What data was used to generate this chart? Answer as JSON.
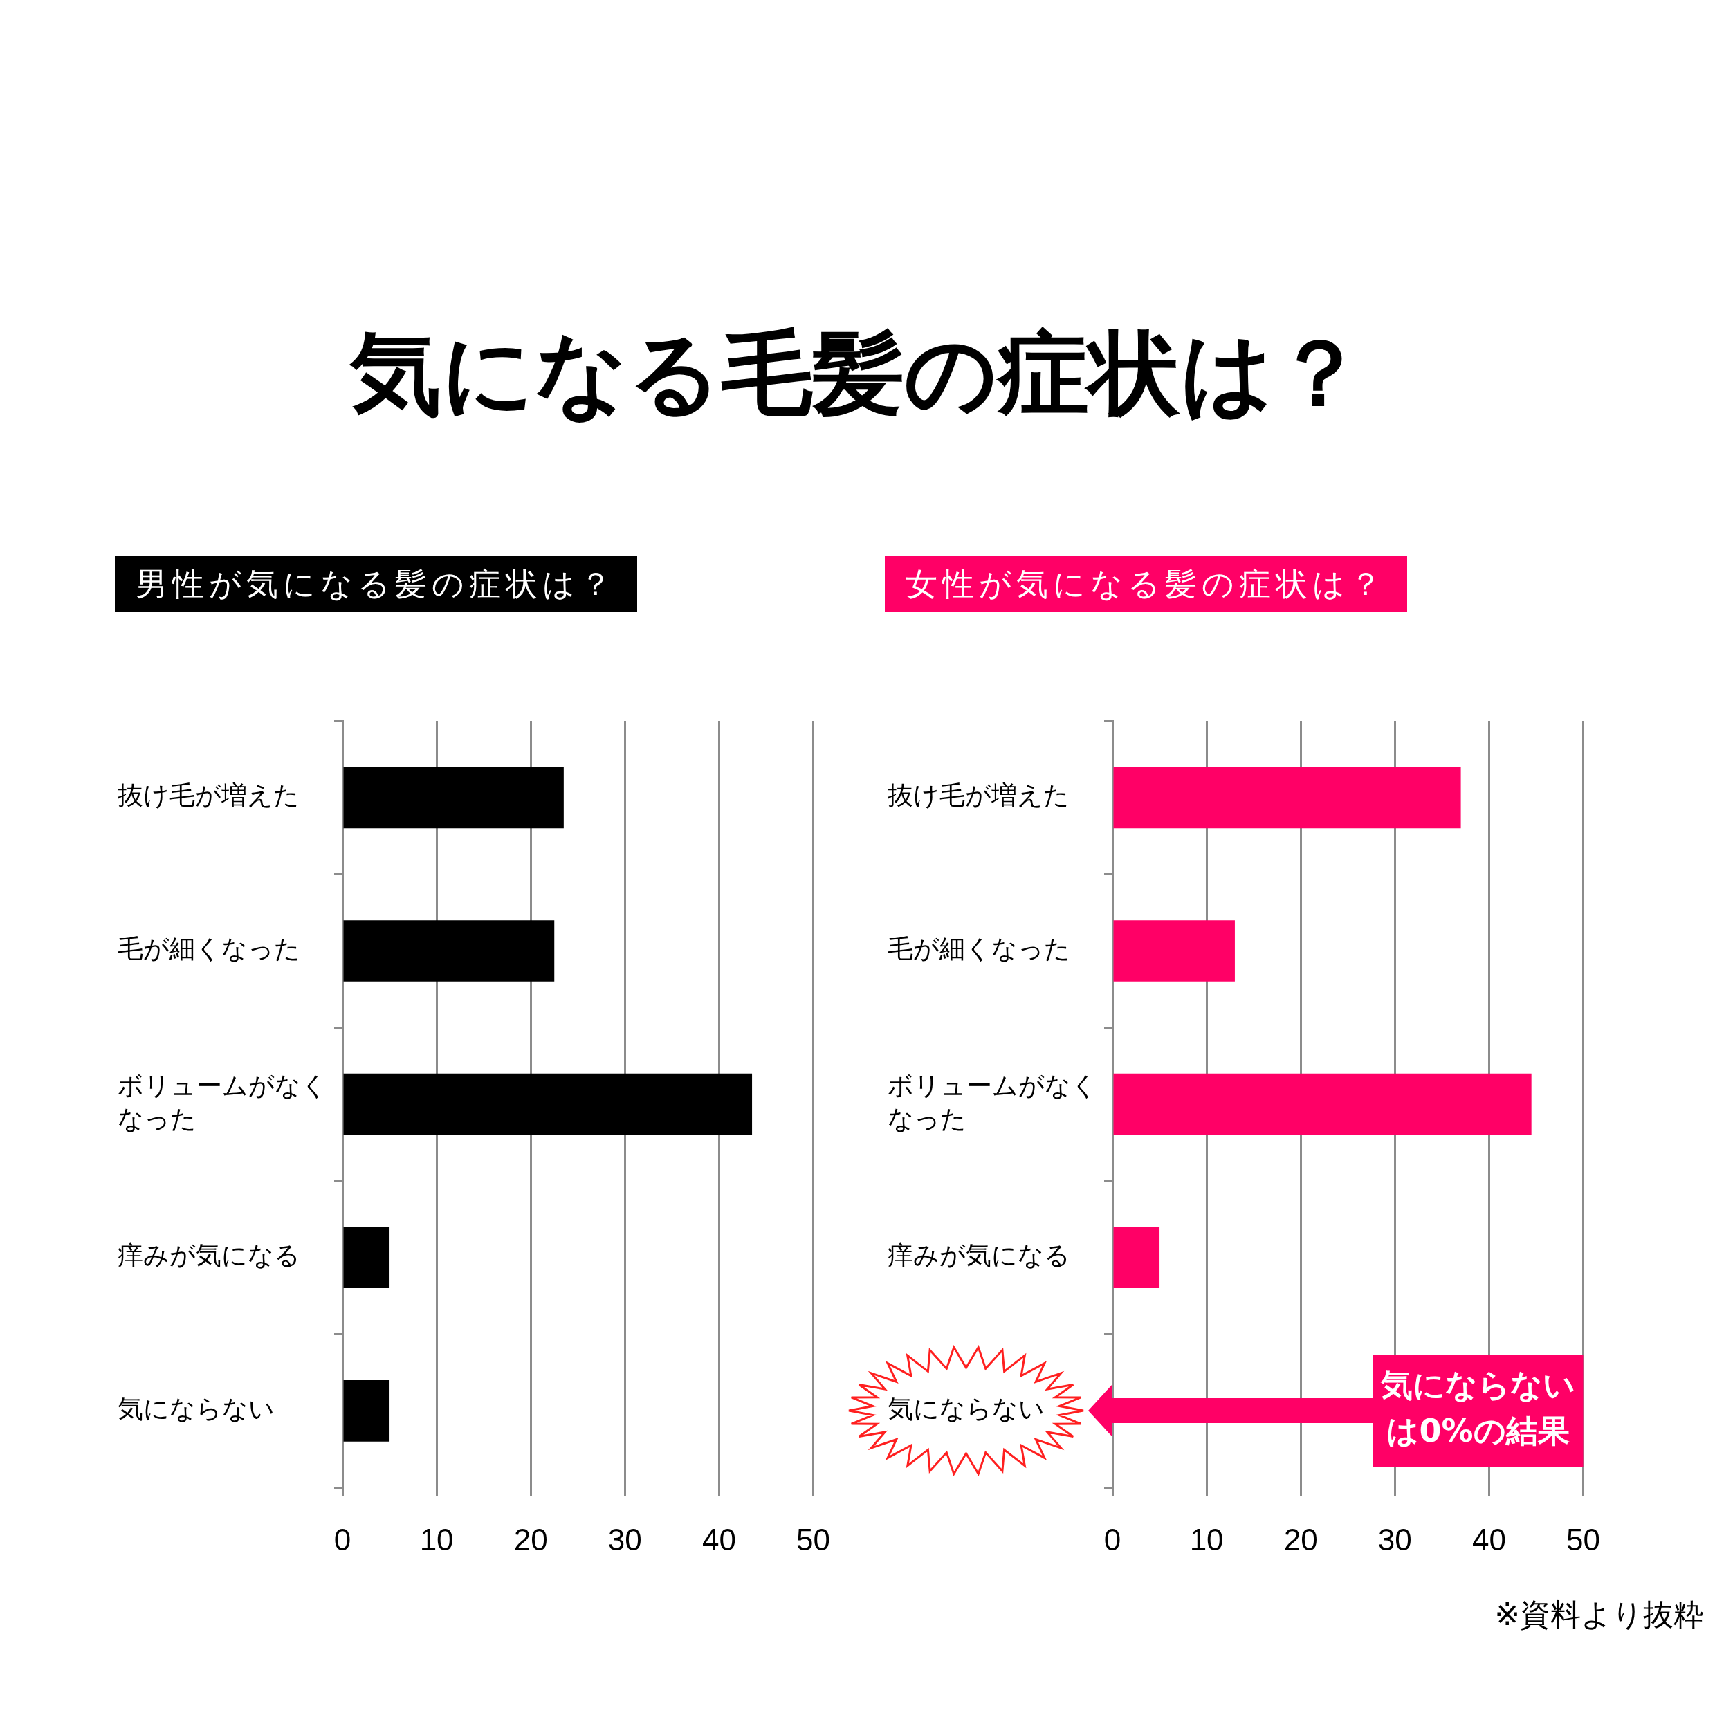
{
  "chart_data": [
    {
      "type": "bar",
      "orientation": "horizontal",
      "title": "気になる毛髪の症状は？",
      "subtitle": "男性が気になる髪の症状は？",
      "categories": [
        "抜け毛が増えた",
        "毛が細くなった",
        "ボリュームがなくなった",
        "痒みが気になる",
        "気にならない"
      ],
      "values": [
        23.5,
        22.5,
        43.5,
        5,
        5
      ],
      "color": "#000000",
      "xlim": [
        0,
        50
      ],
      "xticks": [
        0,
        10,
        20,
        30,
        40,
        50
      ],
      "grid": "x"
    },
    {
      "type": "bar",
      "orientation": "horizontal",
      "subtitle": "女性が気になる髪の症状は？",
      "categories": [
        "抜け毛が増えた",
        "毛が細くなった",
        "ボリュームがなくなった",
        "痒みが気になる",
        "気にならない"
      ],
      "values": [
        37,
        13,
        44.5,
        5,
        0
      ],
      "color": "#ff0066",
      "xlim": [
        0,
        50
      ],
      "xticks": [
        0,
        10,
        20,
        30,
        40,
        50
      ],
      "grid": "x",
      "annotations": [
        "気にならないは0%の結果",
        "※資料より抜粋"
      ]
    }
  ]
}
